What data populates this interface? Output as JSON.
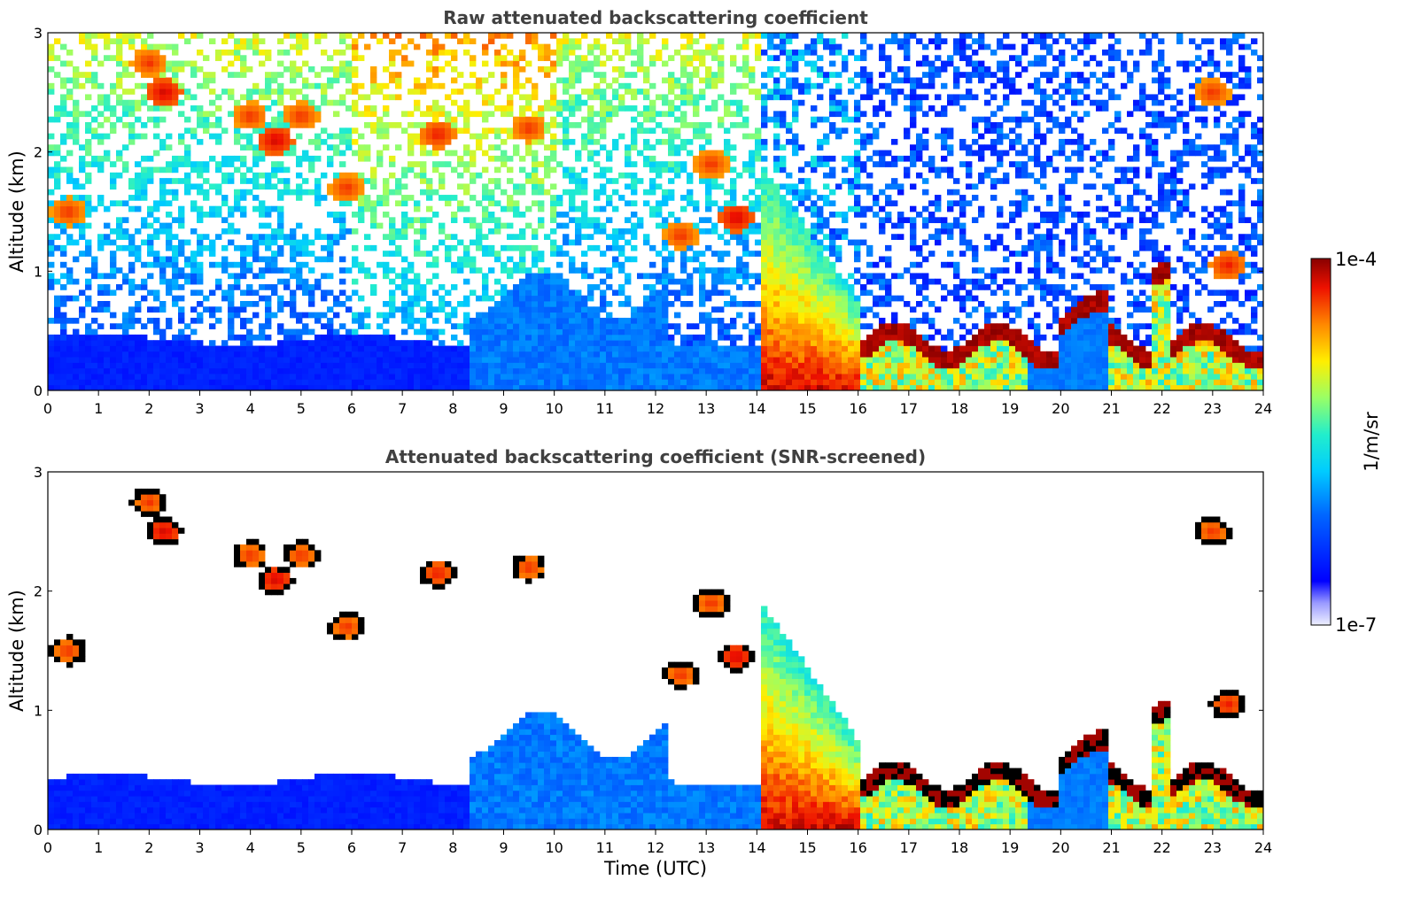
{
  "chart_data": [
    {
      "type": "heatmap",
      "title": "Raw attenuated backscattering coefficient",
      "xlabel": "",
      "ylabel": "Altitude (km)",
      "xlim": [
        0,
        24
      ],
      "ylim": [
        0,
        3
      ],
      "xticks": [
        "0",
        "1",
        "2",
        "3",
        "4",
        "5",
        "6",
        "7",
        "8",
        "9",
        "10",
        "11",
        "12",
        "13",
        "14",
        "15",
        "16",
        "17",
        "18",
        "19",
        "20",
        "21",
        "22",
        "23",
        "24"
      ],
      "yticks": [
        "0",
        "1",
        "2",
        "3"
      ],
      "screened": false,
      "features": [
        {
          "desc": "aerosol boundary layer",
          "t_start": 0,
          "t_end": 14.1,
          "top_km": 0.45
        },
        {
          "desc": "cloud base layer",
          "t_start": 14.1,
          "t_end": 16,
          "top_km": 1.9
        },
        {
          "desc": "low cloud layer",
          "t_start": 16,
          "t_end": 24,
          "top_km": 0.4
        }
      ]
    },
    {
      "type": "heatmap",
      "title": "Attenuated backscattering coefficient (SNR-screened)",
      "xlabel": "Time (UTC)",
      "ylabel": "Altitude (km)",
      "xlim": [
        0,
        24
      ],
      "ylim": [
        0,
        3
      ],
      "xticks": [
        "0",
        "1",
        "2",
        "3",
        "4",
        "5",
        "6",
        "7",
        "8",
        "9",
        "10",
        "11",
        "12",
        "13",
        "14",
        "15",
        "16",
        "17",
        "18",
        "19",
        "20",
        "21",
        "22",
        "23",
        "24"
      ],
      "yticks": [
        "0",
        "1",
        "2",
        "3"
      ],
      "screened": true
    }
  ],
  "colorbar": {
    "label": "1/m/sr",
    "max_label": "1e-4",
    "min_label": "1e-7",
    "colormap": "jet",
    "scale": "log"
  }
}
